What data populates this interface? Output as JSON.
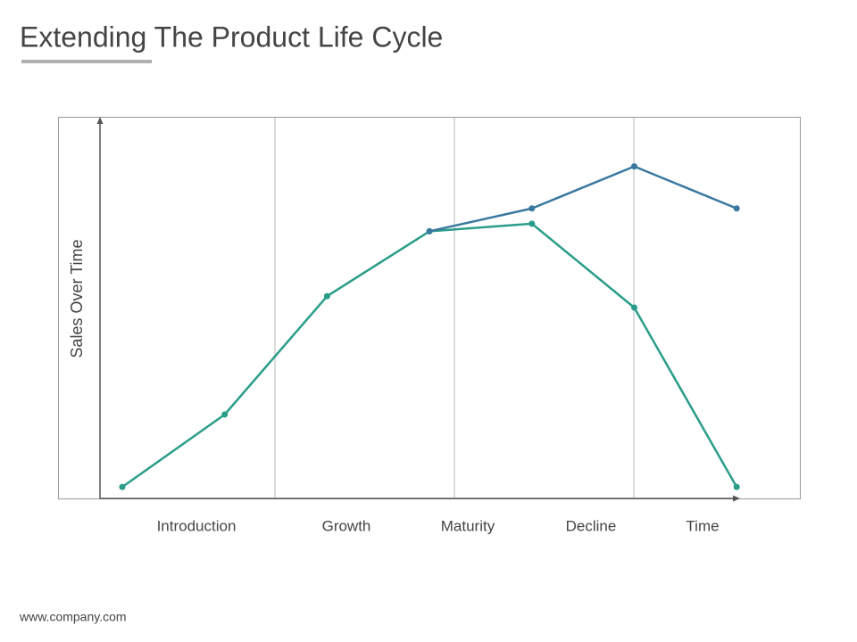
{
  "chart_data": {
    "type": "line",
    "title": "Extending The Product Life Cycle",
    "footer": "www.company.com",
    "y_label": "Sales Over Time",
    "x_label": "Time",
    "phases": [
      "Introduction",
      "Growth",
      "Maturity",
      "Decline"
    ],
    "categories": [
      null,
      null,
      null,
      null,
      null,
      null,
      null
    ],
    "ylim": [
      0,
      100
    ],
    "series": [
      {
        "color": "#2a9d8a",
        "values": [
          3,
          22,
          53,
          70,
          72,
          50,
          3
        ]
      },
      {
        "color": "#3a78a0",
        "values": [
          null,
          null,
          null,
          70,
          76,
          87,
          76
        ]
      }
    ]
  }
}
